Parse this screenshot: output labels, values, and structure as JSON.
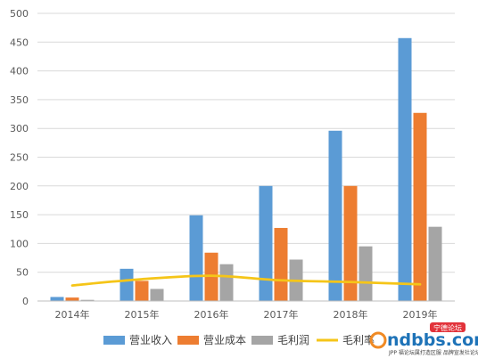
{
  "chart_data": {
    "type": "bar",
    "categories": [
      "2014年",
      "2015年",
      "2016年",
      "2017年",
      "2018年",
      "2019年"
    ],
    "series": [
      {
        "name": "营业收入",
        "type": "bar",
        "color": "#5b9bd5",
        "values": [
          7,
          56,
          149,
          200,
          296,
          457
        ]
      },
      {
        "name": "营业成本",
        "type": "bar",
        "color": "#ed7d31",
        "values": [
          6,
          35,
          84,
          127,
          200,
          327
        ]
      },
      {
        "name": "毛利润",
        "type": "bar",
        "color": "#a5a5a5",
        "values": [
          2,
          21,
          64,
          72,
          95,
          129
        ]
      },
      {
        "name": "毛利率",
        "type": "line",
        "color": "#f5c518",
        "values": [
          27,
          38,
          44,
          36,
          33,
          29
        ]
      }
    ],
    "ylim": [
      0,
      500
    ],
    "yticks": [
      "0",
      "50",
      "100",
      "150",
      "200",
      "250",
      "300",
      "350",
      "400",
      "450",
      "500"
    ],
    "grid": true,
    "legend_position": "bottom",
    "legend_labels": [
      "营业收入",
      "营业成本",
      "毛利润",
      "毛利率"
    ]
  },
  "watermark": {
    "text": "ndbbs.com",
    "badge": "宁德论坛",
    "subtext": "JPP 福论坛属打造区服 品牌宣发社论坛"
  }
}
